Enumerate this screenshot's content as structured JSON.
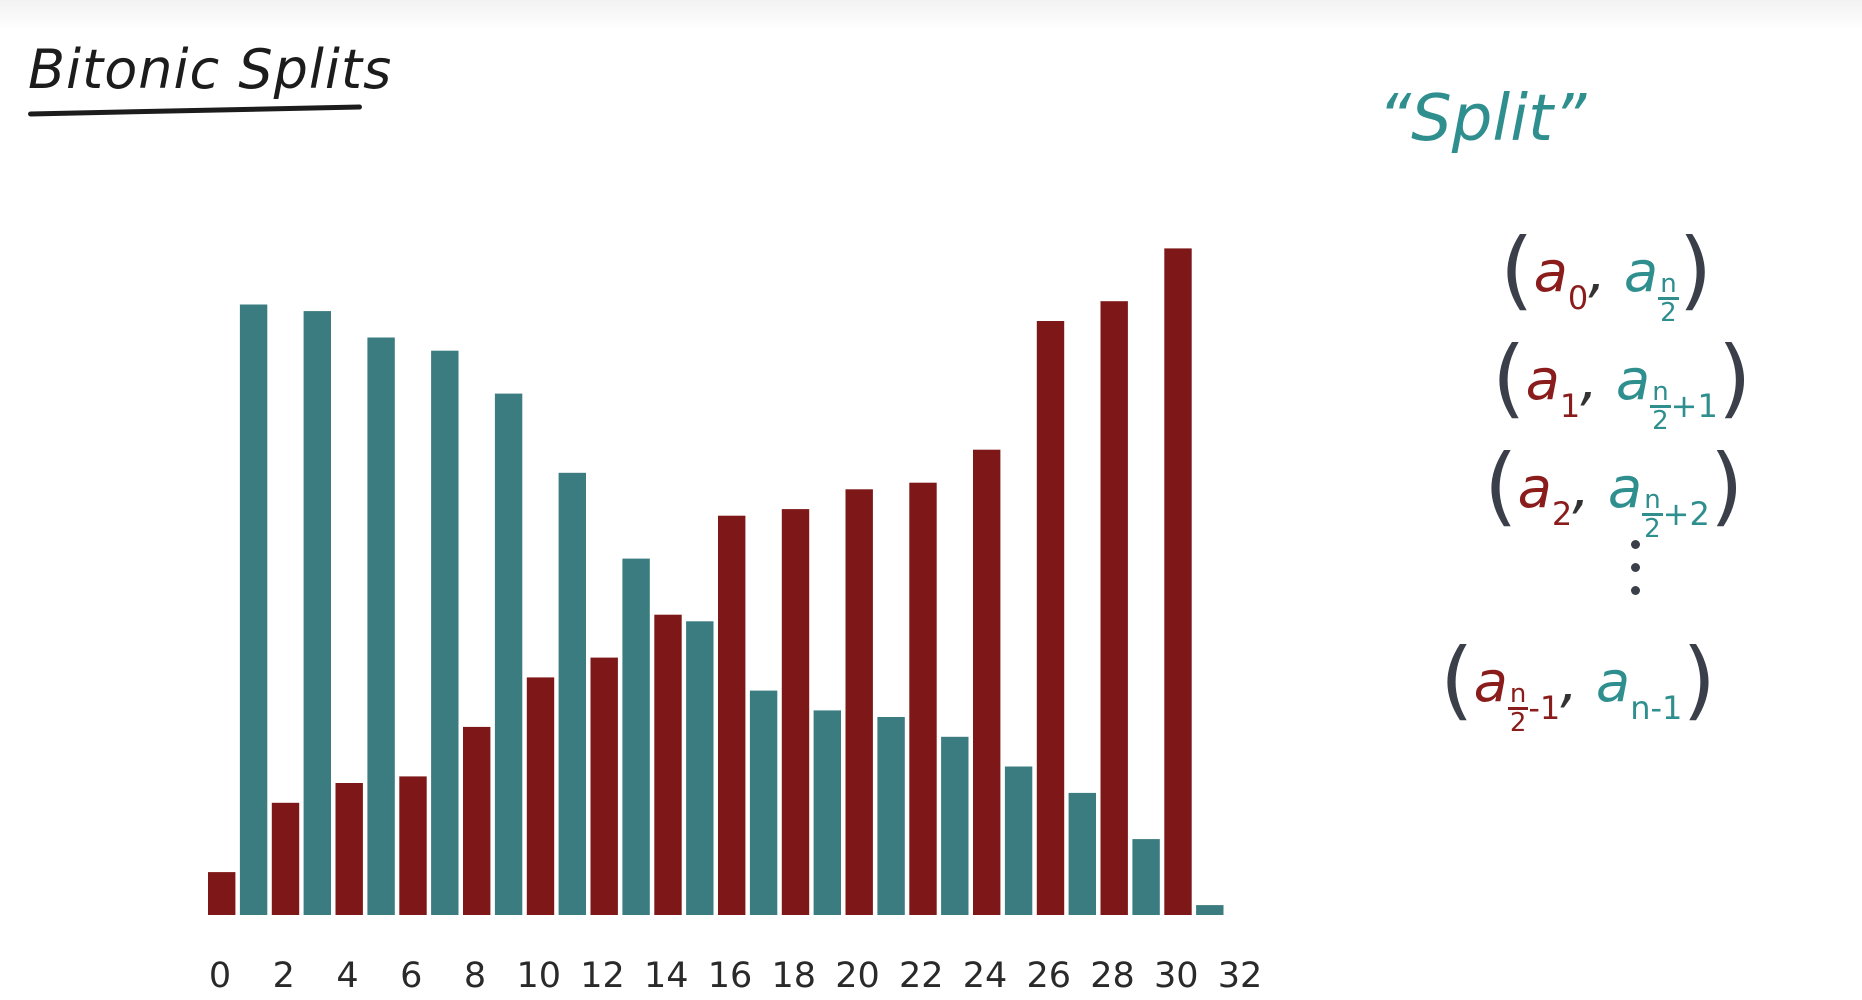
{
  "header": {
    "title": "Bitonic Splits"
  },
  "sidebar_note": {
    "split_label": "“Split”",
    "pairs": [
      {
        "left": "a",
        "left_sub": "0",
        "right": "a",
        "right_sub_num": "n",
        "right_sub_den": "2",
        "right_sub_tail": ""
      },
      {
        "left": "a",
        "left_sub": "1",
        "right": "a",
        "right_sub_num": "n",
        "right_sub_den": "2",
        "right_sub_tail": "+1"
      },
      {
        "left": "a",
        "left_sub": "2",
        "right": "a",
        "right_sub_num": "n",
        "right_sub_den": "2",
        "right_sub_tail": "+2"
      }
    ],
    "last_pair": {
      "left": "a",
      "left_sub_num": "n",
      "left_sub_den": "2",
      "left_sub_tail": "-1",
      "right": "a",
      "right_sub": "n-1"
    }
  },
  "colors": {
    "first_half": "#7e1818",
    "second_half": "#3b7c80"
  },
  "chart_data": {
    "type": "bar",
    "title": "",
    "xlabel": "",
    "ylabel": "",
    "x_ticks": [
      "0",
      "2",
      "4",
      "6",
      "8",
      "10",
      "12",
      "14",
      "16",
      "18",
      "20",
      "22",
      "24",
      "26",
      "28",
      "30",
      "32"
    ],
    "xlim": [
      0,
      32
    ],
    "ylim": [
      0,
      100
    ],
    "grid": false,
    "legend": "none",
    "series": [
      {
        "color": "#7e1818",
        "x": [
          0,
          2,
          4,
          6,
          8,
          10,
          12,
          14,
          16,
          18,
          20,
          22,
          24,
          26,
          28,
          30
        ],
        "values": [
          6.5,
          17,
          20,
          21,
          28.5,
          36,
          39,
          45.5,
          60.5,
          61.5,
          64.5,
          65.5,
          70.5,
          90,
          93,
          101
        ]
      },
      {
        "color": "#3b7c80",
        "x": [
          1,
          3,
          5,
          7,
          9,
          11,
          13,
          15,
          17,
          19,
          21,
          23,
          25,
          27,
          29,
          31
        ],
        "values": [
          92.5,
          91.5,
          87.5,
          85.5,
          79,
          67,
          54,
          44.5,
          34,
          31,
          30,
          27,
          22.5,
          18.5,
          11.5,
          1.5
        ]
      }
    ]
  }
}
